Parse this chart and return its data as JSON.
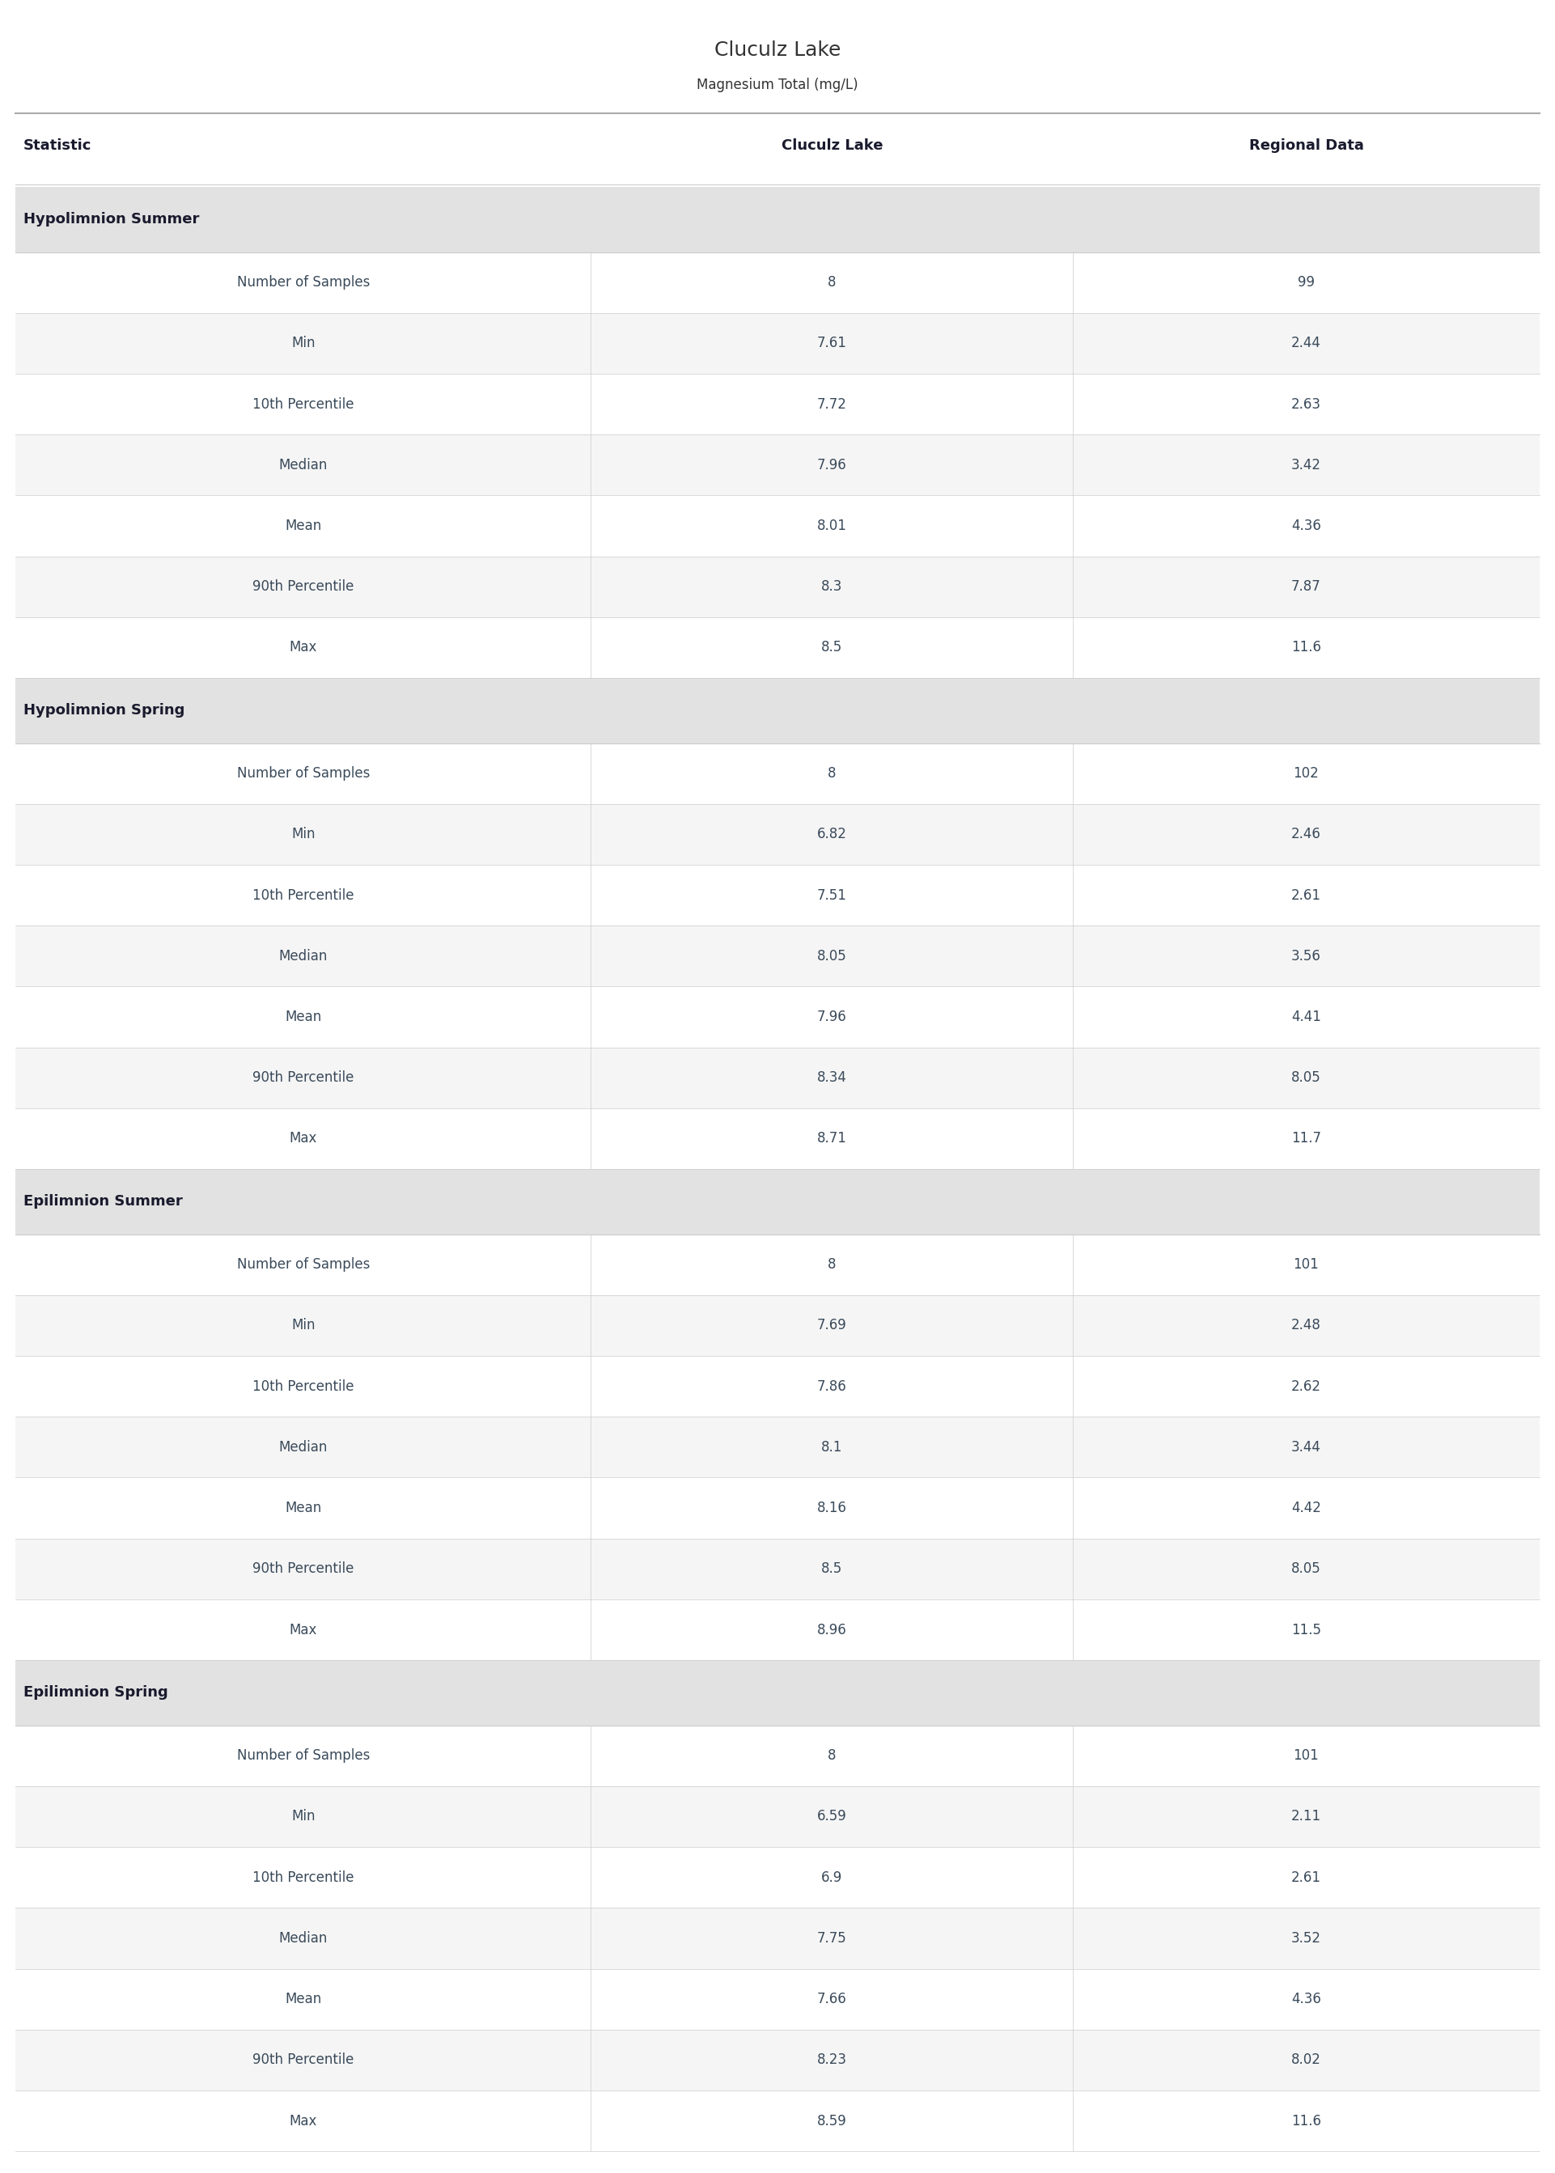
{
  "title": "Cluculz Lake",
  "subtitle": "Magnesium Total (mg/L)",
  "col_headers": [
    "Statistic",
    "Cluculz Lake",
    "Regional Data"
  ],
  "sections": [
    {
      "name": "Hypolimnion Summer",
      "rows": [
        [
          "Number of Samples",
          "8",
          "99"
        ],
        [
          "Min",
          "7.61",
          "2.44"
        ],
        [
          "10th Percentile",
          "7.72",
          "2.63"
        ],
        [
          "Median",
          "7.96",
          "3.42"
        ],
        [
          "Mean",
          "8.01",
          "4.36"
        ],
        [
          "90th Percentile",
          "8.3",
          "7.87"
        ],
        [
          "Max",
          "8.5",
          "11.6"
        ]
      ]
    },
    {
      "name": "Hypolimnion Spring",
      "rows": [
        [
          "Number of Samples",
          "8",
          "102"
        ],
        [
          "Min",
          "6.82",
          "2.46"
        ],
        [
          "10th Percentile",
          "7.51",
          "2.61"
        ],
        [
          "Median",
          "8.05",
          "3.56"
        ],
        [
          "Mean",
          "7.96",
          "4.41"
        ],
        [
          "90th Percentile",
          "8.34",
          "8.05"
        ],
        [
          "Max",
          "8.71",
          "11.7"
        ]
      ]
    },
    {
      "name": "Epilimnion Summer",
      "rows": [
        [
          "Number of Samples",
          "8",
          "101"
        ],
        [
          "Min",
          "7.69",
          "2.48"
        ],
        [
          "10th Percentile",
          "7.86",
          "2.62"
        ],
        [
          "Median",
          "8.1",
          "3.44"
        ],
        [
          "Mean",
          "8.16",
          "4.42"
        ],
        [
          "90th Percentile",
          "8.5",
          "8.05"
        ],
        [
          "Max",
          "8.96",
          "11.5"
        ]
      ]
    },
    {
      "name": "Epilimnion Spring",
      "rows": [
        [
          "Number of Samples",
          "8",
          "101"
        ],
        [
          "Min",
          "6.59",
          "2.11"
        ],
        [
          "10th Percentile",
          "6.9",
          "2.61"
        ],
        [
          "Median",
          "7.75",
          "3.52"
        ],
        [
          "Mean",
          "7.66",
          "4.36"
        ],
        [
          "90th Percentile",
          "8.23",
          "8.02"
        ],
        [
          "Max",
          "8.59",
          "11.6"
        ]
      ]
    }
  ],
  "section_bg": "#e2e2e2",
  "row_bg_even": "#f5f5f5",
  "row_bg_odd": "#ffffff",
  "header_text_color": "#1a1a2e",
  "section_text_color": "#1a1a2e",
  "data_text_color": "#3a4a5a",
  "title_color": "#333333",
  "border_color": "#cccccc",
  "top_border_color": "#aaaaaa"
}
